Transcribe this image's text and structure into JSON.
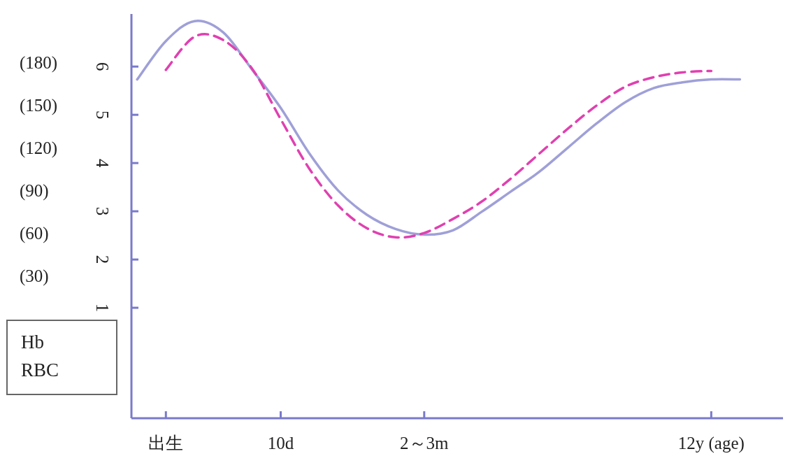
{
  "chart_data": {
    "type": "line",
    "marker": "none",
    "annotations": [
      "Hb",
      "RBC"
    ],
    "categories": [
      null,
      "出生",
      null,
      null,
      null,
      "10d",
      null,
      null,
      null,
      null,
      "2～3m",
      null,
      null,
      null,
      null,
      null,
      null,
      null,
      null,
      null,
      "12y (age)",
      null
    ],
    "ylim": [
      -1.29,
      7.09
    ],
    "yticks": [
      1,
      2,
      3,
      4,
      5,
      6
    ],
    "y2lim": [
      -70,
      214
    ],
    "y2ticks": [
      {
        "value": 30,
        "label": "(30)"
      },
      {
        "value": 60,
        "label": "(60)"
      },
      {
        "value": 90,
        "label": "(90)"
      },
      {
        "value": 120,
        "label": "(120)"
      },
      {
        "value": 150,
        "label": "(150)"
      },
      {
        "value": 180,
        "label": "(180)"
      }
    ],
    "series": [
      {
        "color": "#9fa0d8",
        "line_style": "solid",
        "axis": "y2",
        "values": [
          168,
          195,
          209,
          201,
          175,
          148,
          116,
          90,
          73,
          63,
          59,
          62,
          75,
          89,
          103,
          120,
          137,
          152,
          162,
          166,
          168,
          168
        ]
      },
      {
        "color": "#e040b0",
        "line_style": "dashed",
        "axis": "y",
        "values": [
          null,
          5.93,
          6.62,
          6.55,
          5.96,
          4.91,
          3.88,
          3.12,
          2.65,
          2.46,
          2.55,
          2.84,
          3.2,
          3.67,
          4.19,
          4.71,
          5.19,
          5.58,
          5.78,
          5.88,
          5.91,
          null
        ]
      }
    ]
  }
}
